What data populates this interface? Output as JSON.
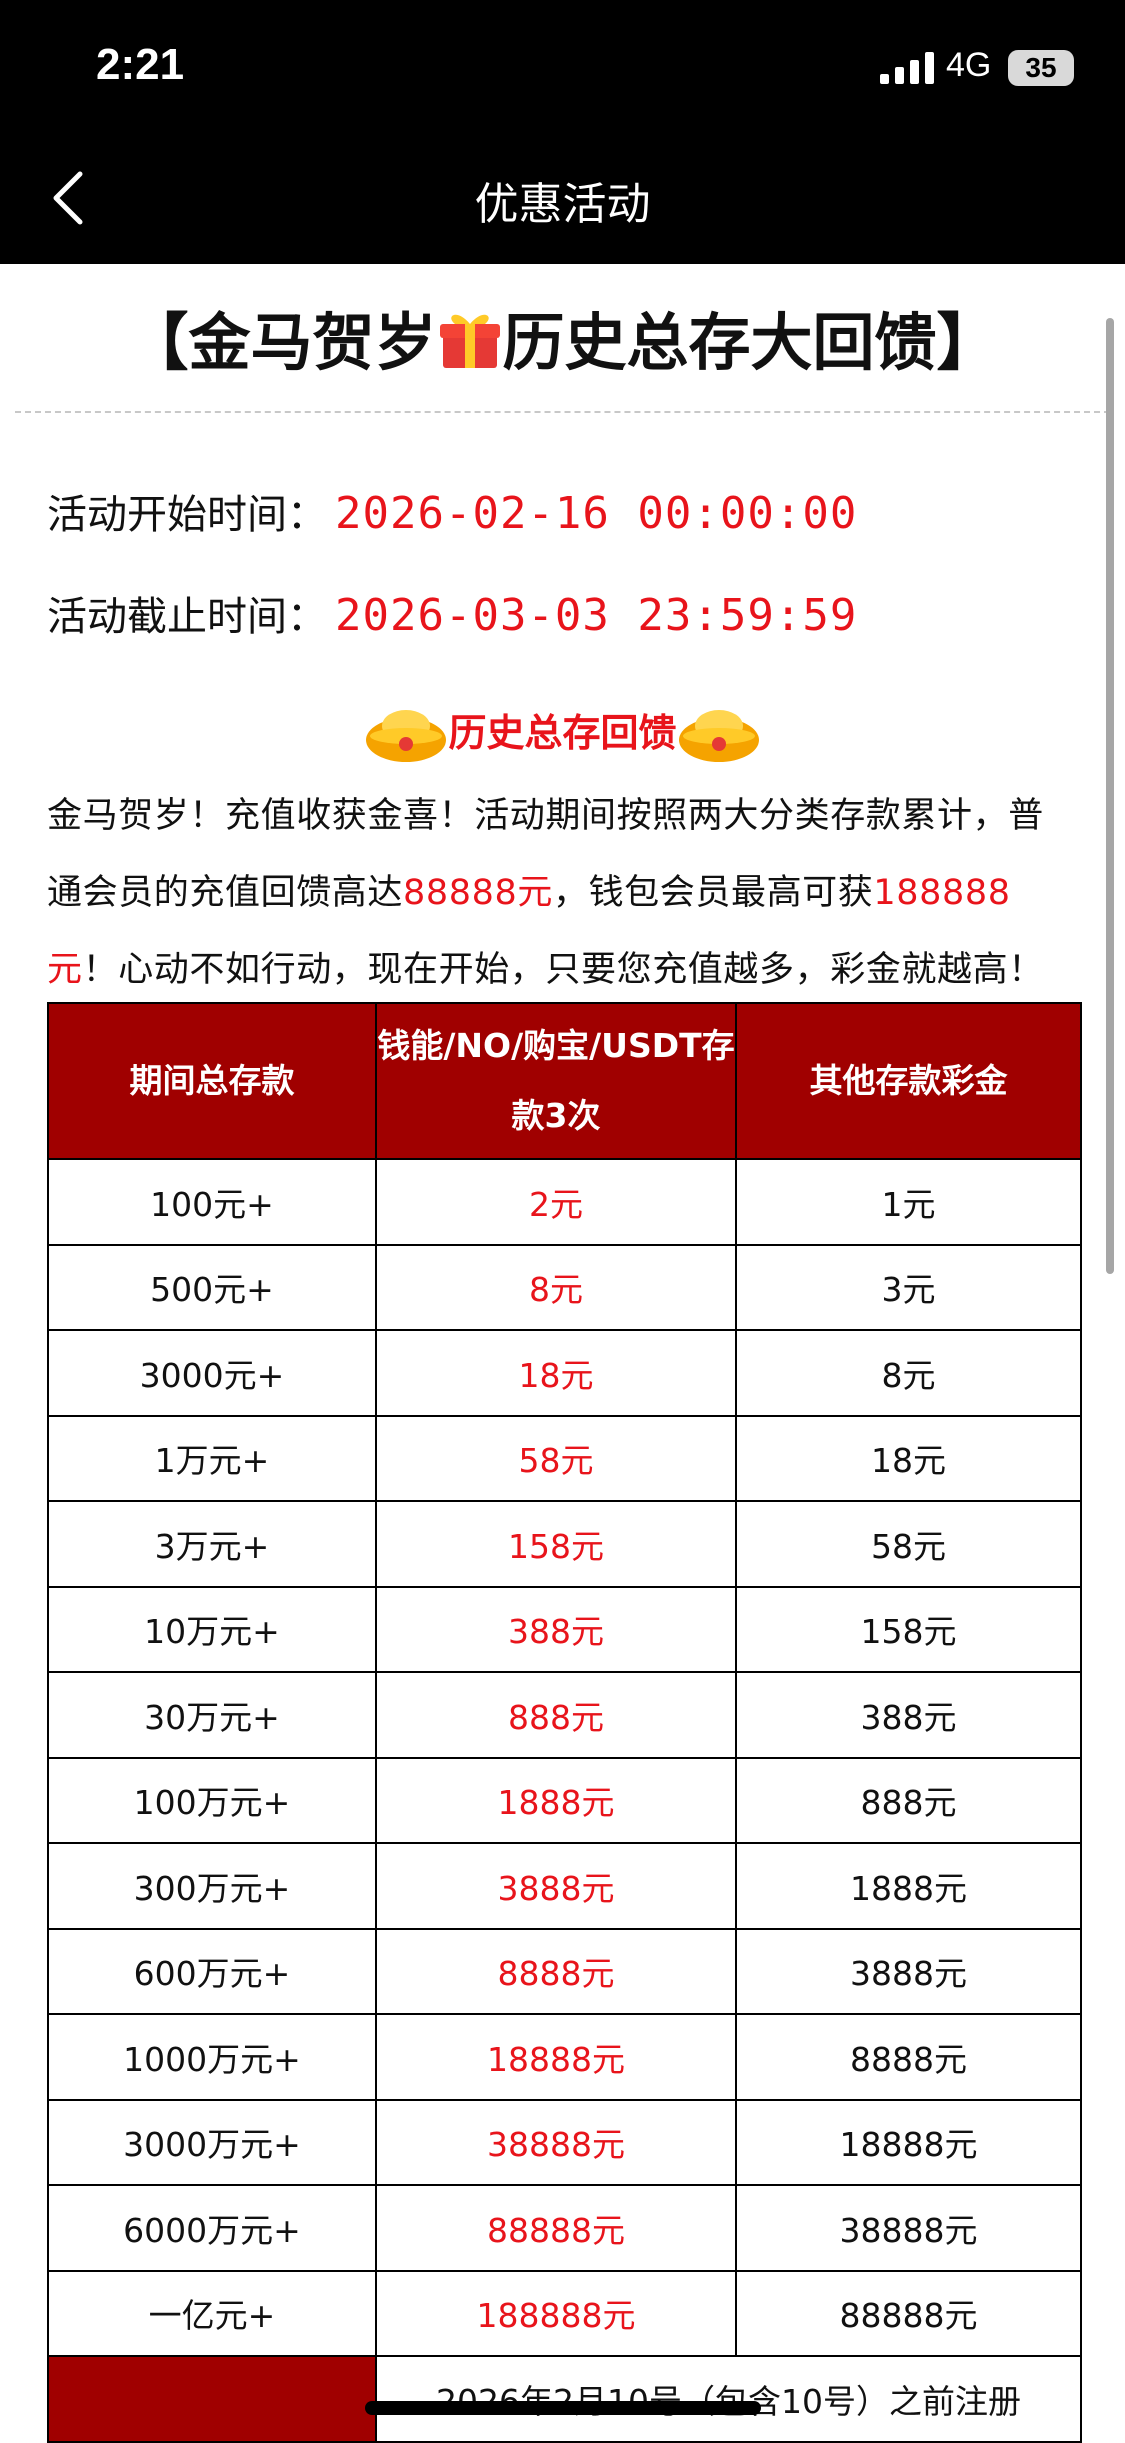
{
  "status_bar": {
    "time": "2:21",
    "network": "4G",
    "battery": "35"
  },
  "nav": {
    "title": "优惠活动"
  },
  "promo": {
    "title_before_icon": "【金马贺岁",
    "title_after_icon": "历史总存大回馈】",
    "start_label": "活动开始时间：",
    "start_value": "2026-02-16 00:00:00",
    "end_label": "活动截止时间：",
    "end_value": "2026-03-03 23:59:59",
    "section_heading": "历史总存回馈",
    "paragraph": [
      "金马贺岁！充值收获金喜！活动期间按照两大分类存款累计，普通会员的充值回馈高达",
      "88888元",
      "，钱包会员最高可获",
      "188888元",
      "！心动不如行动，现在开始，只要您充值越多，彩金就越高！"
    ]
  },
  "table": {
    "headers": [
      "期间总存款",
      "钱能/NO/购宝/USDT存款3次",
      "其他存款彩金"
    ],
    "rows": [
      [
        "100元+",
        "2元",
        "1元"
      ],
      [
        "500元+",
        "8元",
        "3元"
      ],
      [
        "3000元+",
        "18元",
        "8元"
      ],
      [
        "1万元+",
        "58元",
        "18元"
      ],
      [
        "3万元+",
        "158元",
        "58元"
      ],
      [
        "10万元+",
        "388元",
        "158元"
      ],
      [
        "30万元+",
        "888元",
        "388元"
      ],
      [
        "100万元+",
        "1888元",
        "888元"
      ],
      [
        "300万元+",
        "3888元",
        "1888元"
      ],
      [
        "600万元+",
        "8888元",
        "3888元"
      ],
      [
        "1000万元+",
        "18888元",
        "8888元"
      ],
      [
        "3000万元+",
        "38888元",
        "18888元"
      ],
      [
        "6000万元+",
        "88888元",
        "38888元"
      ],
      [
        "一亿元+",
        "188888元",
        "88888元"
      ]
    ],
    "partial_row_text": "2026年2月10号（包含10号）之前注册"
  }
}
